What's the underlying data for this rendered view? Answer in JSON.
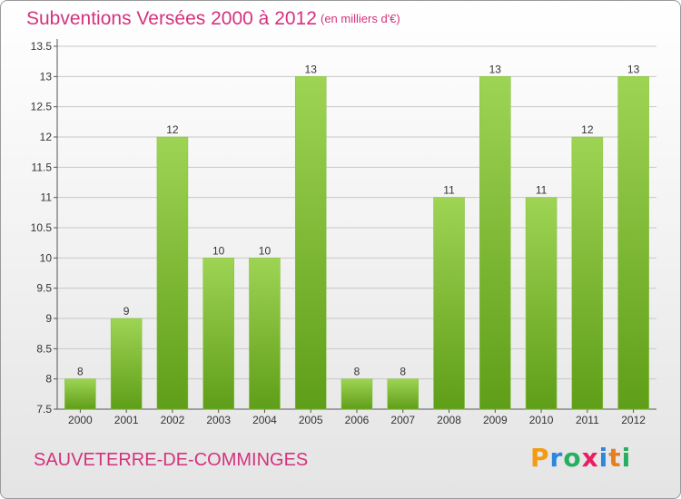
{
  "header": {
    "title": "Subventions Versées 2000 à 2012",
    "unit": "(en milliers d'€)"
  },
  "footer": {
    "place": "SAUVETERRE-DE-COMMINGES",
    "brand_letters": [
      "P",
      "r",
      "o",
      "x",
      "i",
      "t",
      "i"
    ],
    "brand_colors": [
      "#f39c12",
      "#2e86de",
      "#27ae60",
      "#e91e63",
      "#2e86de",
      "#e67e22",
      "#27ae60"
    ]
  },
  "chart_data": {
    "type": "bar",
    "title": "Subventions Versées 2000 à 2012",
    "subtitle": "(en milliers d'€)",
    "categories": [
      "2000",
      "2001",
      "2002",
      "2003",
      "2004",
      "2005",
      "2006",
      "2007",
      "2008",
      "2009",
      "2010",
      "2011",
      "2012"
    ],
    "values": [
      8,
      9,
      12,
      10,
      10,
      13,
      8,
      8,
      11,
      13,
      11,
      12,
      13
    ],
    "data_labels": [
      "8",
      "9",
      "12",
      "10",
      "10",
      "13",
      "8",
      "8",
      "11",
      "13",
      "11",
      "12",
      "13"
    ],
    "yticks": [
      "7.5",
      "8",
      "8.5",
      "9",
      "9.5",
      "10",
      "10.5",
      "11",
      "11.5",
      "12",
      "12.5",
      "13",
      "13.5"
    ],
    "ylim": [
      7.5,
      13.5
    ],
    "grid": true,
    "colors": {
      "bar_top": "#9ed454",
      "bar_bottom": "#5f9e18",
      "grid": "#c8c8c8"
    }
  }
}
